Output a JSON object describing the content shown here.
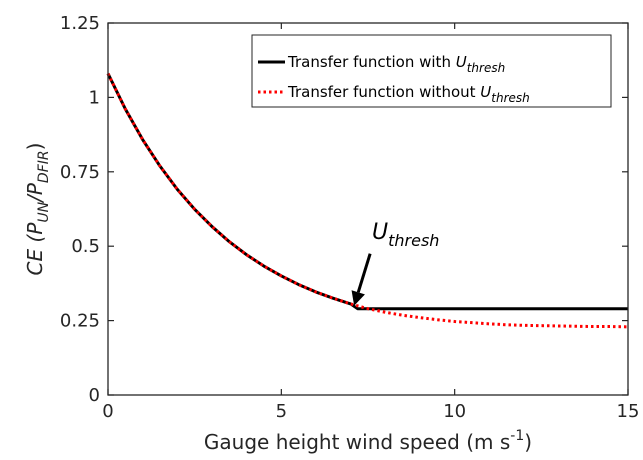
{
  "chart_data": {
    "type": "line",
    "title": "",
    "xlabel": {
      "main": "Gauge height wind speed (m s",
      "sup": "-1",
      "end": ")"
    },
    "ylabel": {
      "prefix": "CE (P",
      "sub1": "UN",
      "mid": "/P",
      "sub2": "DFIR",
      "end": ")"
    },
    "xlim": [
      0,
      15
    ],
    "ylim": [
      0,
      1.25
    ],
    "xticks": [
      0,
      5,
      10,
      15
    ],
    "xtick_labels": [
      "0",
      "5",
      "10",
      "15"
    ],
    "yticks": [
      0,
      0.25,
      0.5,
      0.75,
      1,
      1.25
    ],
    "ytick_labels": [
      "0",
      "0.25",
      "0.5",
      "0.75",
      "1",
      "1.25"
    ],
    "grid": false,
    "legend_position": "top-right",
    "series": [
      {
        "name": "Transfer function with U_thresh",
        "legend_label": {
          "text": "Transfer function with ",
          "sym": "U",
          "sub": "thresh"
        },
        "color": "#000000",
        "style": "solid",
        "x": [
          0,
          0.5,
          1,
          1.5,
          2,
          2.5,
          3,
          3.5,
          4,
          4.5,
          5,
          5.5,
          6,
          6.5,
          7,
          7.2,
          7.5,
          8,
          9,
          10,
          11,
          12,
          13,
          14,
          15
        ],
        "y": [
          1.08,
          0.961,
          0.858,
          0.769,
          0.691,
          0.624,
          0.566,
          0.515,
          0.471,
          0.433,
          0.4,
          0.371,
          0.346,
          0.325,
          0.306,
          0.29,
          0.29,
          0.29,
          0.29,
          0.29,
          0.29,
          0.29,
          0.29,
          0.29,
          0.29
        ]
      },
      {
        "name": "Transfer function without U_thresh",
        "legend_label": {
          "text": "Transfer function without ",
          "sym": "U",
          "sub": "thresh"
        },
        "color": "#ff0000",
        "style": "dotted",
        "x": [
          0,
          0.5,
          1,
          1.5,
          2,
          2.5,
          3,
          3.5,
          4,
          4.5,
          5,
          5.5,
          6,
          6.5,
          7,
          7.5,
          8,
          8.5,
          9,
          9.5,
          10,
          10.5,
          11,
          11.5,
          12,
          12.5,
          13,
          13.5,
          14,
          14.5,
          15
        ],
        "y": [
          1.08,
          0.961,
          0.858,
          0.769,
          0.691,
          0.624,
          0.566,
          0.515,
          0.471,
          0.433,
          0.4,
          0.371,
          0.346,
          0.325,
          0.306,
          0.29,
          0.278,
          0.268,
          0.26,
          0.253,
          0.247,
          0.243,
          0.239,
          0.236,
          0.234,
          0.233,
          0.232,
          0.231,
          0.23,
          0.23,
          0.229
        ]
      }
    ],
    "annotation": {
      "sym": "U",
      "sub": "thresh",
      "arrow_tip": [
        7.1,
        0.29
      ]
    }
  }
}
